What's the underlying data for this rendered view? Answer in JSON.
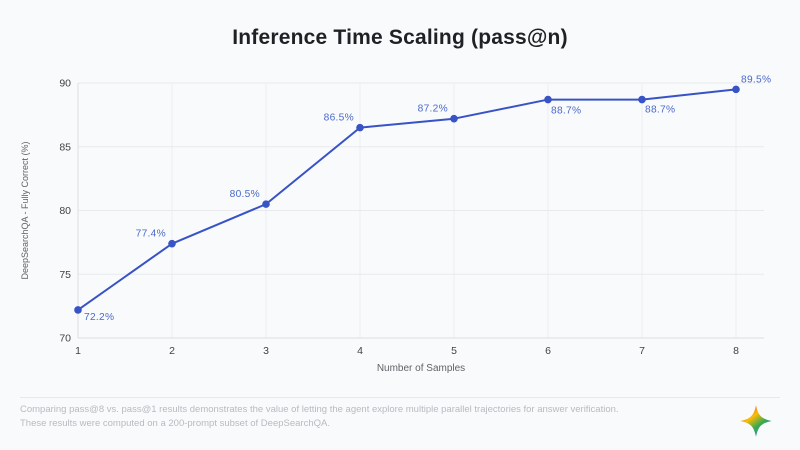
{
  "page": {
    "title": "Inference Time Scaling (pass@n)",
    "footer": {
      "line1": "Comparing pass@8 vs. pass@1 results demonstrates the value of letting the agent explore multiple parallel trajectories for answer verification.",
      "line2": "These results were computed on a 200-prompt subset of DeepSearchQA."
    },
    "logo_icon": "gemini-sparkle-icon"
  },
  "chart_data": {
    "type": "line",
    "title": "Inference Time Scaling (pass@n)",
    "xlabel": "Number of Samples",
    "ylabel": "DeepSearchQA - Fully Correct (%)",
    "x": [
      1,
      2,
      3,
      4,
      5,
      6,
      7,
      8
    ],
    "values": [
      72.2,
      77.4,
      80.5,
      86.5,
      87.2,
      88.7,
      88.7,
      89.5
    ],
    "point_labels": [
      "72.2%",
      "77.4%",
      "80.5%",
      "86.5%",
      "87.2%",
      "88.7%",
      "88.7%",
      "89.5%"
    ],
    "ylim": [
      70,
      90
    ],
    "yticks": [
      70,
      75,
      80,
      85,
      90
    ],
    "grid": true,
    "legend": "none",
    "colors": {
      "line": "#3753c6",
      "point": "#3753c6",
      "point_label": "#4a69cc",
      "grid_h": "#e8eaee",
      "grid_v": "#edeff3",
      "axis": "#dcdee2",
      "tick_label": "#3f4347",
      "axis_title": "#5f6368"
    }
  }
}
